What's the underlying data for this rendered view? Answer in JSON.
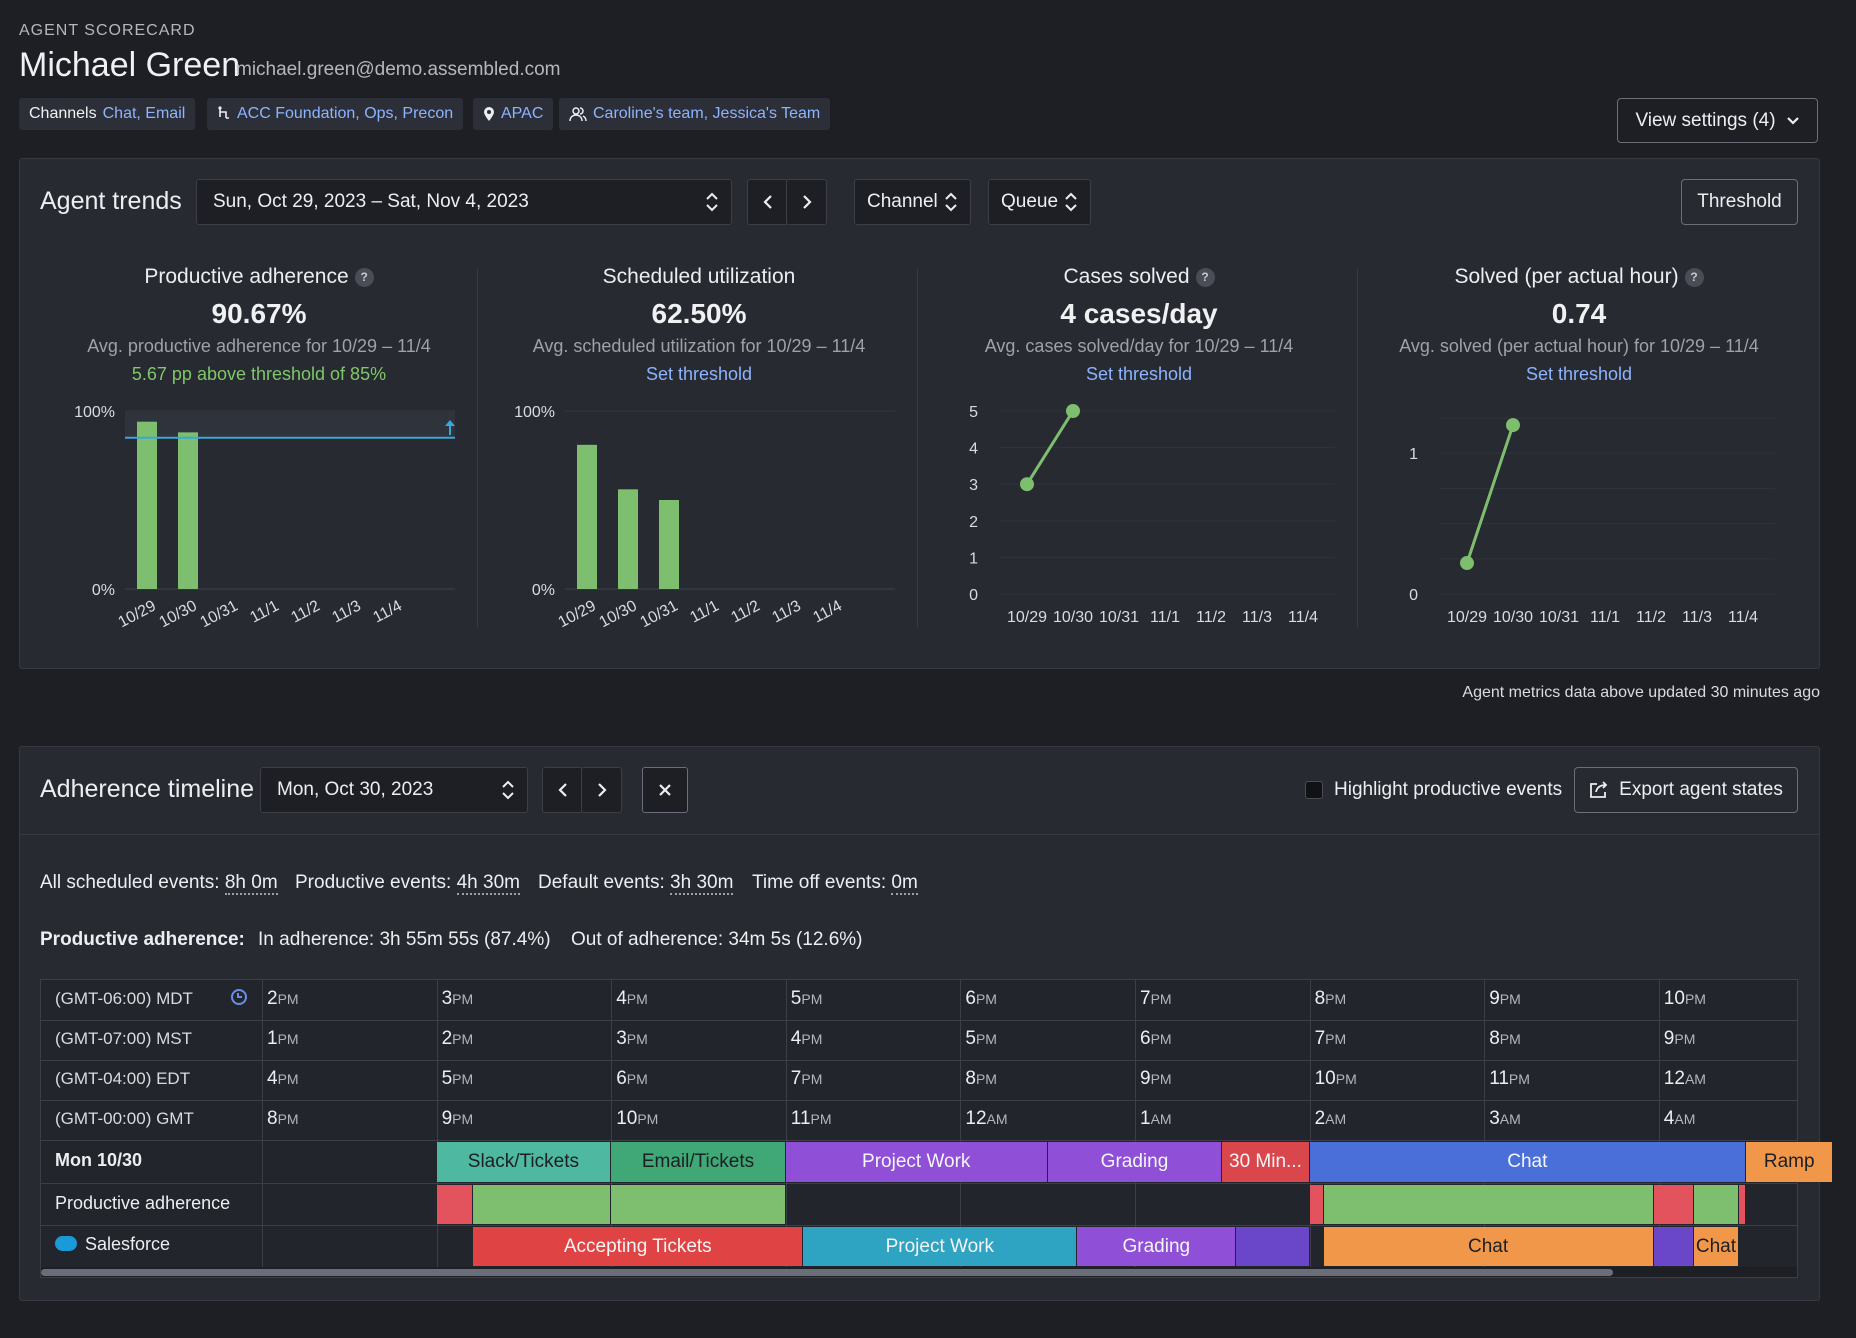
{
  "header": {
    "eyebrow": "AGENT SCORECARD",
    "name": "Michael Green",
    "email": "michael.green@demo.assembled.com",
    "channels_label": "Channels",
    "channels": [
      "Chat",
      "Email"
    ],
    "queues": [
      "ACC Foundation",
      "Ops",
      "Precon"
    ],
    "site": "APAC",
    "teams": [
      "Caroline's team",
      "Jessica's Team"
    ],
    "view_settings": "View settings (4)"
  },
  "trends": {
    "title": "Agent trends",
    "date_range": "Sun, Oct 29, 2023 – Sat, Nov 4, 2023",
    "channel_label": "Channel",
    "queue_label": "Queue",
    "threshold_button": "Threshold",
    "updated_note": "Agent metrics data above updated 30 minutes ago",
    "cards": [
      {
        "title": "Productive adherence",
        "value": "90.67%",
        "sub": "Avg. productive adherence for 10/29 – 11/4",
        "threshold": "5.67 pp above threshold of 85%",
        "has_help": true
      },
      {
        "title": "Scheduled utilization",
        "value": "62.50%",
        "sub": "Avg. scheduled utilization for 10/29 – 11/4",
        "threshold": "Set threshold",
        "has_help": false
      },
      {
        "title": "Cases solved",
        "value": "4 cases/day",
        "sub": "Avg. cases solved/day for 10/29 – 11/4",
        "threshold": "Set threshold",
        "has_help": true
      },
      {
        "title": "Solved (per actual hour)",
        "value": "0.74",
        "sub": "Avg. solved (per actual hour) for 10/29 – 11/4",
        "threshold": "Set threshold",
        "has_help": true
      }
    ]
  },
  "chart_data": [
    {
      "type": "bar",
      "categories": [
        "10/29",
        "10/30",
        "10/31",
        "11/1",
        "11/2",
        "11/3",
        "11/4"
      ],
      "values": [
        94,
        88,
        null,
        null,
        null,
        null,
        null
      ],
      "ylim": [
        0,
        100
      ],
      "y_tick_labels": [
        "0%",
        "100%"
      ],
      "threshold": 85,
      "color": "#7dbf6e"
    },
    {
      "type": "bar",
      "categories": [
        "10/29",
        "10/30",
        "10/31",
        "11/1",
        "11/2",
        "11/3",
        "11/4"
      ],
      "values": [
        81,
        56,
        50,
        null,
        null,
        null,
        null
      ],
      "ylim": [
        0,
        100
      ],
      "y_tick_labels": [
        "0%",
        "100%"
      ],
      "color": "#7dbf6e"
    },
    {
      "type": "line",
      "categories": [
        "10/29",
        "10/30",
        "10/31",
        "11/1",
        "11/2",
        "11/3",
        "11/4"
      ],
      "values": [
        3,
        5,
        null,
        null,
        null,
        null,
        null
      ],
      "ylim": [
        0,
        5
      ],
      "y_ticks": [
        0,
        1,
        2,
        3,
        4,
        5
      ],
      "color": "#7dbf6e"
    },
    {
      "type": "line",
      "categories": [
        "10/29",
        "10/30",
        "10/31",
        "11/1",
        "11/2",
        "11/3",
        "11/4"
      ],
      "values": [
        0.22,
        1.2,
        null,
        null,
        null,
        null,
        null
      ],
      "ylim": [
        0,
        1.3
      ],
      "y_ticks": [
        0,
        1
      ],
      "color": "#7dbf6e"
    }
  ],
  "timeline": {
    "title": "Adherence timeline",
    "date": "Mon, Oct 30, 2023",
    "highlight_label": "Highlight productive events",
    "export_label": "Export agent states",
    "stats": {
      "all_label": "All scheduled events:",
      "all_value": "8h 0m",
      "prod_label": "Productive events:",
      "prod_value": "4h 30m",
      "default_label": "Default events:",
      "default_value": "3h 30m",
      "timeoff_label": "Time off events:",
      "timeoff_value": "0m"
    },
    "adherence": {
      "label": "Productive adherence:",
      "in": "In adherence: 3h 55m 55s (87.4%)",
      "out": "Out of adherence: 34m 5s (12.6%)"
    },
    "timezones": [
      {
        "label": "(GMT-06:00) MDT",
        "hours": [
          [
            "2",
            "PM"
          ],
          [
            "3",
            "PM"
          ],
          [
            "4",
            "PM"
          ],
          [
            "5",
            "PM"
          ],
          [
            "6",
            "PM"
          ],
          [
            "7",
            "PM"
          ],
          [
            "8",
            "PM"
          ],
          [
            "9",
            "PM"
          ],
          [
            "10",
            "PM"
          ]
        ]
      },
      {
        "label": "(GMT-07:00) MST",
        "hours": [
          [
            "1",
            "PM"
          ],
          [
            "2",
            "PM"
          ],
          [
            "3",
            "PM"
          ],
          [
            "4",
            "PM"
          ],
          [
            "5",
            "PM"
          ],
          [
            "6",
            "PM"
          ],
          [
            "7",
            "PM"
          ],
          [
            "8",
            "PM"
          ],
          [
            "9",
            "PM"
          ]
        ]
      },
      {
        "label": "(GMT-04:00) EDT",
        "hours": [
          [
            "4",
            "PM"
          ],
          [
            "5",
            "PM"
          ],
          [
            "6",
            "PM"
          ],
          [
            "7",
            "PM"
          ],
          [
            "8",
            "PM"
          ],
          [
            "9",
            "PM"
          ],
          [
            "10",
            "PM"
          ],
          [
            "11",
            "PM"
          ],
          [
            "12",
            "AM"
          ]
        ]
      },
      {
        "label": "(GMT-00:00) GMT",
        "hours": [
          [
            "8",
            "PM"
          ],
          [
            "9",
            "PM"
          ],
          [
            "10",
            "PM"
          ],
          [
            "11",
            "PM"
          ],
          [
            "12",
            "AM"
          ],
          [
            "1",
            "AM"
          ],
          [
            "2",
            "AM"
          ],
          [
            "3",
            "AM"
          ],
          [
            "4",
            "AM"
          ]
        ]
      }
    ],
    "day_label": "Mon 10/30",
    "adherence_row_label": "Productive adherence",
    "salesforce_label": "Salesforce",
    "schedule": [
      {
        "label": "Slack/Tickets",
        "color": "#4fb8a0",
        "start": 1.0,
        "end": 2.0
      },
      {
        "label": "Email/Tickets",
        "color": "#3fa876",
        "start": 2.0,
        "end": 3.0
      },
      {
        "label": "Project Work",
        "color": "#8f4fd6",
        "start": 3.0,
        "end": 4.5
      },
      {
        "label": "Grading",
        "color": "#8f4fd6",
        "start": 4.5,
        "end": 5.5
      },
      {
        "label": "30 Min...",
        "color": "#d9474c",
        "start": 5.5,
        "end": 6.0
      },
      {
        "label": "Chat",
        "color": "#4a6fd8",
        "start": 6.0,
        "end": 8.5
      },
      {
        "label": "Ramp",
        "color": "#f0974a",
        "start": 8.5,
        "end": 9.0
      }
    ],
    "adherence_blocks": [
      {
        "color": "#e2535d",
        "start": 1.0,
        "end": 1.21
      },
      {
        "color": "#7dbf6e",
        "start": 1.21,
        "end": 2.0
      },
      {
        "color": "#7dbf6e",
        "start": 2.0,
        "end": 3.0
      },
      {
        "color": "#e2535d",
        "start": 6.0,
        "end": 6.08
      },
      {
        "color": "#7dbf6e",
        "start": 6.08,
        "end": 7.97
      },
      {
        "color": "#e2535d",
        "start": 7.97,
        "end": 8.2
      },
      {
        "color": "#7dbf6e",
        "start": 8.2,
        "end": 8.46
      },
      {
        "color": "#e2535d",
        "start": 8.46,
        "end": 8.5
      }
    ],
    "salesforce": [
      {
        "label": "Accepting Tickets",
        "color": "#e04343",
        "start": 1.21,
        "end": 3.1
      },
      {
        "label": "Project Work",
        "color": "#2fa3c2",
        "start": 3.1,
        "end": 4.67
      },
      {
        "label": "Grading",
        "color": "#8f4fd6",
        "start": 4.67,
        "end": 5.58
      },
      {
        "label": "",
        "color": "#6a47c9",
        "start": 5.58,
        "end": 6.0
      },
      {
        "label": "Chat",
        "color": "#f0974a",
        "start": 6.08,
        "end": 7.97
      },
      {
        "label": "",
        "color": "#6a47c9",
        "start": 7.97,
        "end": 8.2
      },
      {
        "label": "Chat",
        "color": "#f0974a",
        "start": 8.2,
        "end": 8.46
      }
    ]
  }
}
